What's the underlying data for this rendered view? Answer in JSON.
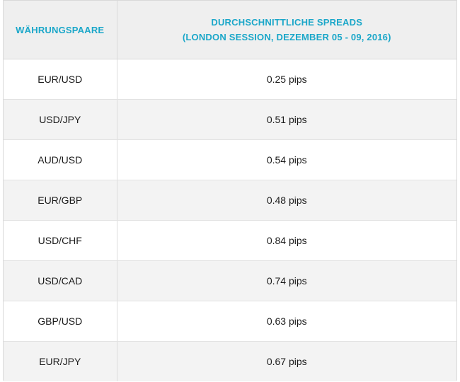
{
  "header": {
    "col_pair": "WÄHRUNGSPAARE",
    "col_spread_line1": "DURCHSCHNITTLICHE SPREADS",
    "col_spread_line2": "(LONDON SESSION, DEZEMBER 05 - 09, 2016)"
  },
  "rows": [
    {
      "pair": "EUR/USD",
      "spread": "0.25 pips"
    },
    {
      "pair": "USD/JPY",
      "spread": "0.51 pips"
    },
    {
      "pair": "AUD/USD",
      "spread": "0.54 pips"
    },
    {
      "pair": "EUR/GBP",
      "spread": "0.48 pips"
    },
    {
      "pair": "USD/CHF",
      "spread": "0.84 pips"
    },
    {
      "pair": "USD/CAD",
      "spread": "0.74 pips"
    },
    {
      "pair": "GBP/USD",
      "spread": "0.63 pips"
    },
    {
      "pair": "EUR/JPY",
      "spread": "0.67 pips"
    }
  ],
  "colors": {
    "header_text": "#1ba7c9",
    "header_bg": "#efefef",
    "alt_row_bg": "#f3f3f3",
    "border": "#d9d9d9"
  }
}
